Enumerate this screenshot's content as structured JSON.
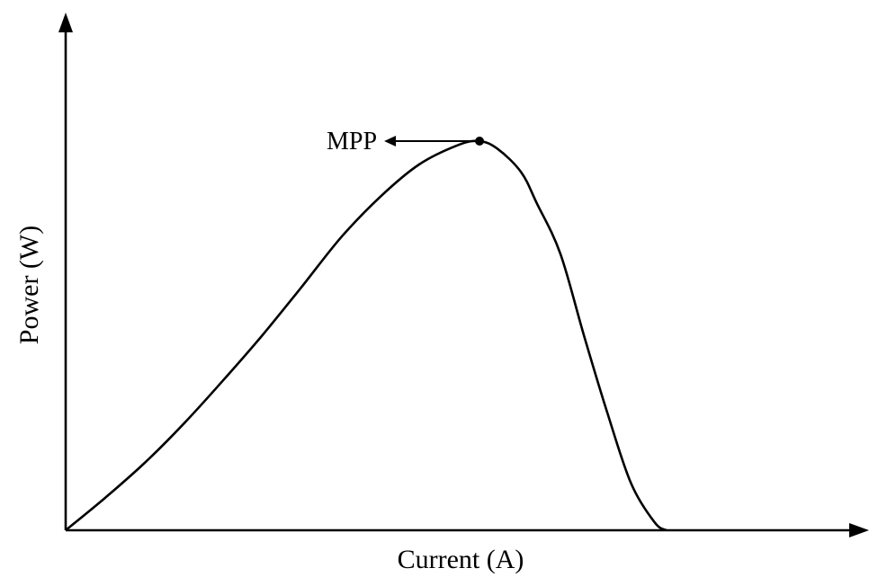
{
  "chart_data": {
    "type": "line",
    "xlabel": "Current (A)",
    "ylabel": "Power (W)",
    "xlim": [
      0,
      1
    ],
    "ylim": [
      0,
      1
    ],
    "series": [
      {
        "x": [
          0.0,
          0.05,
          0.1,
          0.15,
          0.2,
          0.25,
          0.3,
          0.35,
          0.4,
          0.45,
          0.5,
          0.527,
          0.55,
          0.58,
          0.6,
          0.63,
          0.66,
          0.69,
          0.72,
          0.75,
          0.765
        ],
        "values": [
          0.0,
          0.083,
          0.172,
          0.273,
          0.384,
          0.5,
          0.624,
          0.751,
          0.856,
          0.94,
          0.99,
          1.0,
          0.98,
          0.92,
          0.84,
          0.71,
          0.5,
          0.3,
          0.12,
          0.02,
          0.0
        ]
      }
    ],
    "annotations": [
      {
        "text": "MPP",
        "x": 0.527,
        "y": 1.0
      }
    ]
  }
}
